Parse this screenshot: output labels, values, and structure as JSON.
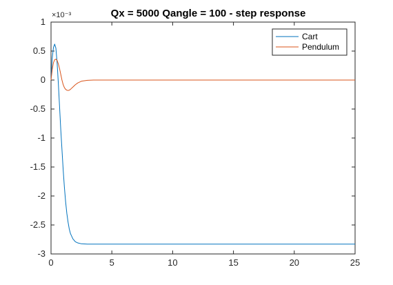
{
  "chart_data": {
    "type": "line",
    "title": "Qx = 5000 Qangle = 100 - step response",
    "xlabel": "",
    "ylabel": "",
    "xlim": [
      0,
      25
    ],
    "ylim": [
      -3,
      1
    ],
    "y_multiplier": "×10⁻³",
    "x_ticks": [
      "0",
      "5",
      "10",
      "15",
      "20",
      "25"
    ],
    "y_ticks": [
      "1",
      "0.5",
      "0",
      "-0.5",
      "-1",
      "-1.5",
      "-2",
      "-2.5",
      "-3"
    ],
    "grid": false,
    "legend_position": "top-right",
    "series": [
      {
        "name": "Cart",
        "color": "#0072BD",
        "x": [
          0,
          0.1,
          0.2,
          0.3,
          0.4,
          0.5,
          0.6,
          0.7,
          0.8,
          0.9,
          1.0,
          1.1,
          1.2,
          1.3,
          1.4,
          1.5,
          1.6,
          1.8,
          2.0,
          2.2,
          2.5,
          3.0,
          3.5,
          4.0,
          5.0,
          6.0,
          8.0,
          10.0,
          15.0,
          20.0,
          25.0
        ],
        "y": [
          0,
          0.38,
          0.56,
          0.62,
          0.55,
          0.3,
          -0.05,
          -0.45,
          -0.85,
          -1.2,
          -1.55,
          -1.85,
          -2.1,
          -2.3,
          -2.45,
          -2.57,
          -2.65,
          -2.74,
          -2.79,
          -2.81,
          -2.825,
          -2.83,
          -2.83,
          -2.83,
          -2.83,
          -2.83,
          -2.83,
          -2.83,
          -2.83,
          -2.83,
          -2.83
        ]
      },
      {
        "name": "Pendulum",
        "color": "#D95319",
        "x": [
          0,
          0.1,
          0.2,
          0.3,
          0.4,
          0.5,
          0.6,
          0.7,
          0.8,
          0.9,
          1.0,
          1.1,
          1.2,
          1.3,
          1.4,
          1.5,
          1.6,
          1.8,
          2.0,
          2.2,
          2.5,
          3.0,
          3.5,
          4.0,
          5.0,
          6.0,
          8.0,
          10.0,
          15.0,
          20.0,
          25.0
        ],
        "y": [
          0,
          0.18,
          0.3,
          0.35,
          0.36,
          0.34,
          0.28,
          0.2,
          0.1,
          0.0,
          -0.08,
          -0.13,
          -0.16,
          -0.175,
          -0.18,
          -0.175,
          -0.16,
          -0.12,
          -0.08,
          -0.05,
          -0.02,
          -0.005,
          0.0,
          0.0,
          0.0,
          0.0,
          0.0,
          0.0,
          0.0,
          0.0,
          0.0
        ]
      }
    ]
  }
}
